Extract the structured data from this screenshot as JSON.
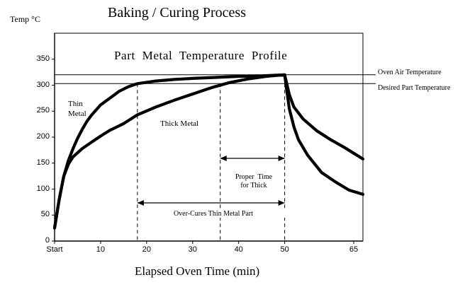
{
  "chart_data": {
    "type": "line",
    "title": "Baking / Curing Process",
    "subtitle": "Part Metal Temperature Profile",
    "xlabel": "Elapsed Oven Time (min)",
    "ylabel": "Temp °C",
    "xlim": [
      0,
      67
    ],
    "ylim": [
      0,
      400
    ],
    "x_ticks": [
      {
        "value": 0,
        "label": "Start"
      },
      {
        "value": 10,
        "label": "10"
      },
      {
        "value": 20,
        "label": "20"
      },
      {
        "value": 30,
        "label": "30"
      },
      {
        "value": 40,
        "label": "40"
      },
      {
        "value": 50,
        "label": "50"
      },
      {
        "value": 65,
        "label": "65"
      }
    ],
    "y_ticks": [
      0,
      50,
      100,
      150,
      200,
      250,
      300,
      350
    ],
    "grid": false,
    "reference_lines": [
      {
        "label": "Oven Air Temperature",
        "y": 320
      },
      {
        "label": "Desired Part Temperature",
        "y": 303
      }
    ],
    "series": [
      {
        "name": "Thin Metal",
        "color": "#000000",
        "x": [
          0,
          1,
          2,
          3,
          4,
          5,
          6,
          7,
          8,
          10,
          12,
          14,
          16,
          18,
          22,
          26,
          30,
          35,
          40,
          45,
          50,
          51,
          52,
          53,
          55,
          58,
          61,
          64,
          67
        ],
        "y": [
          25,
          80,
          125,
          155,
          178,
          198,
          215,
          230,
          242,
          262,
          275,
          288,
          297,
          303,
          308,
          311,
          313,
          315,
          317,
          318,
          320,
          255,
          220,
          195,
          165,
          132,
          114,
          98,
          90
        ]
      },
      {
        "name": "Thick Metal",
        "color": "#000000",
        "x": [
          0,
          1,
          2,
          3,
          4,
          6,
          8,
          10,
          12,
          15,
          18,
          22,
          26,
          30,
          34,
          38,
          42,
          46,
          50,
          51,
          52,
          54,
          57,
          60,
          63,
          67
        ],
        "y": [
          25,
          80,
          125,
          148,
          162,
          178,
          190,
          202,
          213,
          226,
          243,
          258,
          271,
          283,
          295,
          305,
          312,
          317,
          320,
          282,
          258,
          235,
          212,
          195,
          180,
          158
        ]
      }
    ],
    "annotations": [
      {
        "text": "Thin\nMetal"
      },
      {
        "text": "Thick Metal"
      },
      {
        "text": "Proper  Time\nfor Thick",
        "x_range": [
          36,
          50
        ]
      },
      {
        "text": "Over-Cures Thin Metal Part",
        "x_range": [
          18,
          50
        ]
      }
    ],
    "markers_x": [
      18,
      36,
      50
    ]
  }
}
